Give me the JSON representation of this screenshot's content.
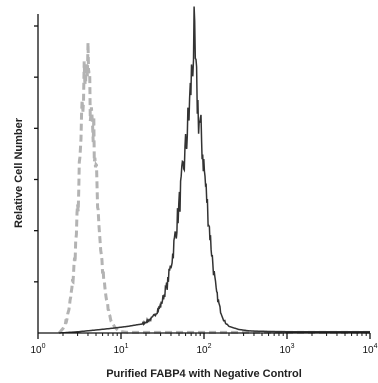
{
  "chart_data": {
    "type": "line",
    "xlabel": "Purified FABP4 with Negative Control",
    "ylabel": "Relative Cell Number",
    "x_scale": "log",
    "xlim": [
      1,
      10000
    ],
    "x_ticks": [
      {
        "base": "10",
        "exp": "0"
      },
      {
        "base": "10",
        "exp": "1"
      },
      {
        "base": "10",
        "exp": "2"
      },
      {
        "base": "10",
        "exp": "3"
      },
      {
        "base": "10",
        "exp": "4"
      }
    ],
    "ylim": [
      0,
      100
    ],
    "y_tick_count": 6,
    "grid": false,
    "series": [
      {
        "style": "dashed",
        "color": "#b3b3b3",
        "points": [
          [
            1.8,
            0
          ],
          [
            2.0,
            1.5
          ],
          [
            2.2,
            4
          ],
          [
            2.4,
            9
          ],
          [
            2.6,
            16
          ],
          [
            2.8,
            26
          ],
          [
            3.0,
            40
          ],
          [
            3.2,
            56
          ],
          [
            3.4,
            71
          ],
          [
            3.6,
            84
          ],
          [
            3.8,
            92
          ],
          [
            4.0,
            88
          ],
          [
            4.2,
            80
          ],
          [
            4.4,
            74
          ],
          [
            4.7,
            66
          ],
          [
            5.0,
            54
          ],
          [
            5.3,
            42
          ],
          [
            5.6,
            31
          ],
          [
            6.0,
            21
          ],
          [
            6.5,
            13
          ],
          [
            7.0,
            8
          ],
          [
            7.6,
            4
          ],
          [
            8.4,
            2
          ],
          [
            9.5,
            0.5
          ],
          [
            12,
            0.2
          ],
          [
            50,
            0.2
          ],
          [
            200,
            0.2
          ],
          [
            1000,
            0.2
          ],
          [
            10000,
            0.2
          ]
        ]
      },
      {
        "style": "solid",
        "color": "#333333",
        "points": [
          [
            1.8,
            0
          ],
          [
            3,
            0.4
          ],
          [
            5,
            1
          ],
          [
            8,
            1.6
          ],
          [
            12,
            2.2
          ],
          [
            18,
            3
          ],
          [
            24,
            5
          ],
          [
            30,
            9
          ],
          [
            36,
            16
          ],
          [
            42,
            26
          ],
          [
            48,
            38
          ],
          [
            54,
            50
          ],
          [
            60,
            61
          ],
          [
            66,
            73
          ],
          [
            72,
            88
          ],
          [
            76,
            98
          ],
          [
            80,
            84
          ],
          [
            86,
            72
          ],
          [
            92,
            66
          ],
          [
            98,
            58
          ],
          [
            106,
            47
          ],
          [
            116,
            35
          ],
          [
            128,
            23
          ],
          [
            140,
            14
          ],
          [
            156,
            8
          ],
          [
            175,
            4
          ],
          [
            200,
            2.2
          ],
          [
            260,
            1.2
          ],
          [
            350,
            0.7
          ],
          [
            600,
            0.5
          ],
          [
            1500,
            0.4
          ],
          [
            4000,
            0.4
          ],
          [
            10000,
            0.4
          ]
        ]
      }
    ]
  }
}
